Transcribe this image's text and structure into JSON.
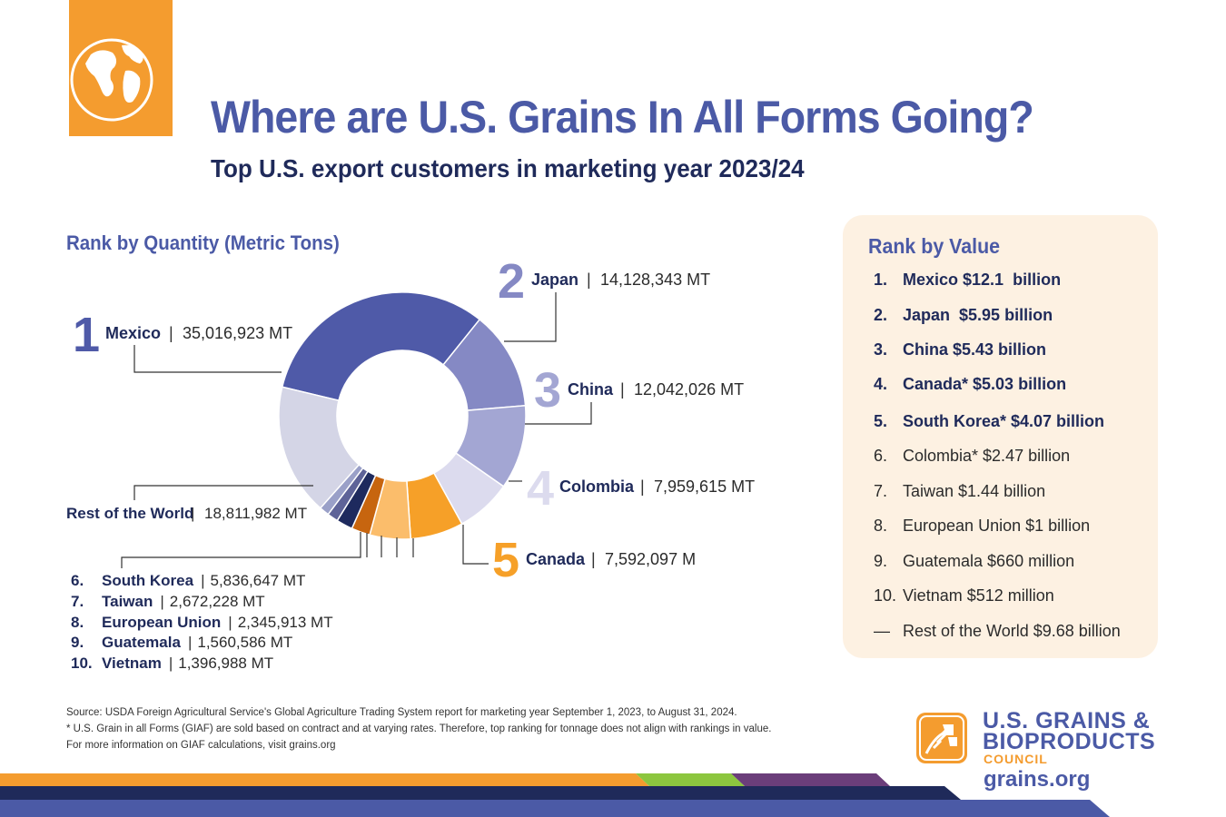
{
  "header": {
    "title": "Where are U.S. Grains In All Forms Going?",
    "subtitle": "Top U.S. export customers in marketing year 2023/24"
  },
  "quantity": {
    "heading": "Rank by Quantity (Metric Tons)",
    "callouts": [
      {
        "rank": "1",
        "country": "Mexico",
        "value": "35,016,923 MT"
      },
      {
        "rank": "2",
        "country": "Japan",
        "value": "14,128,343 MT"
      },
      {
        "rank": "3",
        "country": "China",
        "value": "12,042,026 MT"
      },
      {
        "rank": "4",
        "country": "Colombia",
        "value": "7,959,615 MT"
      },
      {
        "rank": "5",
        "country": "Canada",
        "value": "7,592,097 M"
      },
      {
        "rank": "",
        "country": "Rest of the World",
        "value": "18,811,982 MT"
      }
    ],
    "minor": [
      {
        "rank": "6.",
        "country": "South Korea",
        "value": "5,836,647 MT"
      },
      {
        "rank": "7.",
        "country": "Taiwan",
        "value": "2,672,228 MT"
      },
      {
        "rank": "8.",
        "country": "European Union",
        "value": "2,345,913 MT"
      },
      {
        "rank": "9.",
        "country": "Guatemala",
        "value": "1,560,586 MT"
      },
      {
        "rank": "10.",
        "country": "Vietnam",
        "value": "1,396,988 MT"
      }
    ]
  },
  "chart_data": {
    "type": "pie",
    "variant": "donut",
    "categories": [
      "Mexico",
      "Japan",
      "China",
      "Colombia",
      "Canada",
      "South Korea",
      "Taiwan",
      "European Union",
      "Guatemala",
      "Vietnam",
      "Rest of the World"
    ],
    "values": [
      35016923,
      14128343,
      12042026,
      7959615,
      7592097,
      5836647,
      2672228,
      2345913,
      1560586,
      1396988,
      18811982
    ],
    "units": "MT",
    "colors": [
      "#4f5aa8",
      "#8589c4",
      "#a3a6d3",
      "#dcdbee",
      "#f6a028",
      "#fbbd6b",
      "#c7650f",
      "#1e2a5e",
      "#5e6398",
      "#9aa0c8",
      "#d4d5e6"
    ]
  },
  "value": {
    "heading": "Rank by Value",
    "items": [
      {
        "rank": "1.",
        "text": "Mexico $12.1  billion",
        "bold": true
      },
      {
        "rank": "2.",
        "text": "Japan  $5.95 billion",
        "bold": true
      },
      {
        "rank": "3.",
        "text": "China $5.43 billion",
        "bold": true
      },
      {
        "rank": "4.",
        "text": "Canada* $5.03 billion",
        "bold": true
      },
      {
        "rank": "5.",
        "text": "South Korea* $4.07 billion",
        "bold": true
      },
      {
        "rank": "6.",
        "text": "Colombia* $2.47 billion",
        "bold": false
      },
      {
        "rank": "7.",
        "text": "Taiwan $1.44 billion",
        "bold": false
      },
      {
        "rank": "8.",
        "text": "European Union $1 billion",
        "bold": false
      },
      {
        "rank": "9.",
        "text": "Guatemala $660 million",
        "bold": false
      },
      {
        "rank": "10.",
        "text": "Vietnam $512 million",
        "bold": false
      },
      {
        "rank": "—",
        "text": "Rest of the World $9.68 billion",
        "bold": false
      }
    ]
  },
  "footer": {
    "source_lines": [
      "Source: USDA Foreign Agricultural Service's Global Agriculture Trading System report for marketing year September 1, 2023, to August 31, 2024.",
      "* U.S. Grain in all Forms (GIAF) are sold based on contract and at varying rates. Therefore, top ranking for tonnage does not align with rankings in value.",
      "For more information on GIAF calculations, visit grains.org"
    ],
    "logo_line1": "U.S. GRAINS &",
    "logo_line2": "BIOPRODUCTS",
    "logo_line3": "COUNCIL",
    "logo_url": "grains.org"
  },
  "colors": {
    "orange": "#f49c2f",
    "title_blue": "#4b5aa6",
    "navy": "#1f2a5a",
    "panel_bg": "#fdf1e2"
  }
}
